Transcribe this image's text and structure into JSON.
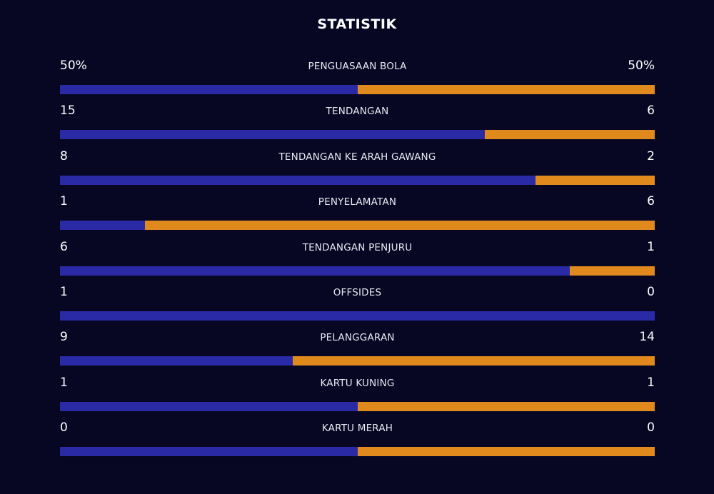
{
  "title": "STATISTIK",
  "colors": {
    "background": "#070724",
    "home": "#2b2aa6",
    "away": "#e0891c"
  },
  "stats": [
    {
      "label": "PENGUASAAN BOLA",
      "left": "50%",
      "right": "50%",
      "left_share": 0.5
    },
    {
      "label": "TENDANGAN",
      "left": "15",
      "right": "6",
      "left_share": 0.7143
    },
    {
      "label": "TENDANGAN KE ARAH GAWANG",
      "left": "8",
      "right": "2",
      "left_share": 0.8
    },
    {
      "label": "PENYELAMATAN",
      "left": "1",
      "right": "6",
      "left_share": 0.1429
    },
    {
      "label": "TENDANGAN PENJURU",
      "left": "6",
      "right": "1",
      "left_share": 0.8571
    },
    {
      "label": "OFFSIDES",
      "left": "1",
      "right": "0",
      "left_share": 1.0
    },
    {
      "label": "PELANGGARAN",
      "left": "9",
      "right": "14",
      "left_share": 0.3913
    },
    {
      "label": "KARTU KUNING",
      "left": "1",
      "right": "1",
      "left_share": 0.5
    },
    {
      "label": "KARTU MERAH",
      "left": "0",
      "right": "0",
      "left_share": 0.5
    }
  ]
}
